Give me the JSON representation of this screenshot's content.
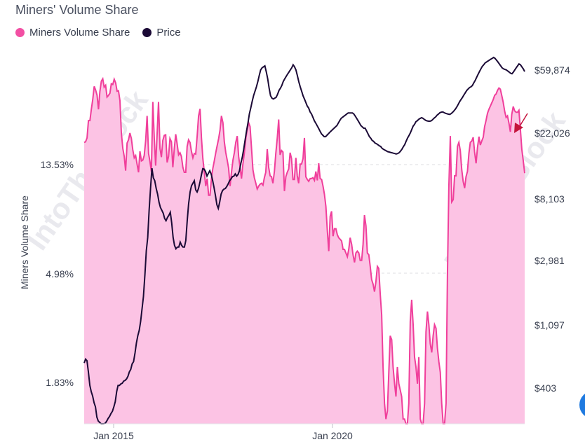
{
  "chart_data": {
    "type": "area",
    "title": "Miners' Volume Share",
    "ylabel": "Miners Volume Share",
    "y_left_ticks": [
      "13.53%",
      "4.98%",
      "1.83%"
    ],
    "y_right_ticks": [
      "$59,874",
      "$22,026",
      "$8,103",
      "$2,981",
      "$1,097",
      "$403"
    ],
    "x_ticks": [
      "Jan 2015",
      "Jan 2020"
    ],
    "x_start": "2014-06",
    "x_step_months": 1,
    "legend_position": "top-left",
    "grid": true,
    "log_scale_left": true,
    "log_scale_right": true,
    "series": [
      {
        "name": "Miners Volume Share",
        "color": "#f03f9b",
        "fill": "#fcc3e4",
        "axis": "left",
        "unit": "%",
        "values": [
          16.6,
          16.7,
          17.3,
          20.3,
          20.3,
          22.5,
          24.6,
          27.8,
          26.9,
          25.6,
          22.5,
          26.5,
          29.2,
          29.8,
          27.6,
          28.1,
          25.2,
          25.6,
          26.1,
          28.5,
          28.3,
          29.7,
          28.7,
          26.6,
          26.7,
          24.4,
          18.1,
          15.7,
          14.6,
          12.8,
          16.5,
          17.0,
          18.1,
          17.2,
          15.5,
          14.4,
          14.7,
          13.6,
          12.6,
          15.3,
          14.0,
          14.1,
          14.7,
          16.9,
          21.2,
          15.0,
          13.9,
          12.7,
          24.1,
          17.3,
          13.4,
          18.0,
          24.1,
          15.7,
          14.5,
          16.9,
          17.7,
          17.8,
          13.8,
          14.6,
          17.2,
          16.7,
          13.2,
          15.7,
          17.9,
          16.4,
          14.8,
          15.1,
          14.6,
          13.2,
          12.6,
          12.6,
          16.0,
          17.0,
          16.6,
          15.3,
          14.4,
          15.0,
          14.9,
          17.6,
          21.2,
          22.6,
          17.3,
          14.3,
          12.6,
          11.1,
          11.9,
          10.2,
          10.2,
          12.0,
          13.1,
          14.0,
          15.1,
          16.1,
          17.2,
          18.6,
          21.2,
          19.9,
          16.7,
          15.1,
          14.1,
          13.1,
          11.1,
          12.6,
          14.1,
          15.1,
          16.6,
          17.6,
          14.6,
          13.2,
          11.9,
          13.6,
          15.1,
          17.2,
          18.6,
          19.9,
          19.2,
          15.7,
          12.9,
          12.0,
          11.4,
          10.8,
          11.1,
          11.3,
          11.4,
          11.2,
          12.0,
          12.6,
          15.6,
          13.2,
          12.2,
          12.1,
          11.4,
          12.7,
          15.0,
          17.3,
          20.5,
          14.8,
          15.4,
          15.2,
          10.6,
          12.1,
          12.6,
          13.0,
          15.1,
          14.3,
          11.8,
          11.8,
          14.4,
          12.2,
          11.4,
          13.6,
          13.6,
          14.3,
          17.3,
          12.1,
          11.8,
          11.6,
          11.9,
          11.9,
          12.0,
          11.7,
          12.7,
          11.7,
          13.7,
          11.9,
          11.8,
          11.1,
          10.3,
          9.2,
          7.4,
          6.1,
          8.4,
          8.8,
          7.0,
          7.5,
          7.5,
          7.1,
          6.9,
          6.8,
          6.7,
          6.2,
          6.2,
          6.0,
          5.8,
          6.2,
          6.9,
          6.5,
          5.9,
          5.5,
          6.0,
          6.1,
          6.0,
          5.6,
          5.6,
          6.5,
          8.5,
          7.7,
          6.0,
          5.9,
          5.3,
          4.7,
          4.5,
          4.2,
          4.6,
          5.3,
          5.2,
          4.1,
          3.4,
          2.1,
          1.5,
          1.3,
          1.4,
          2.0,
          2.8,
          2.7,
          2.1,
          1.8,
          1.6,
          2.1,
          1.8,
          1.7,
          1.6,
          1.3,
          1.3,
          1.2,
          1.0,
          1.5,
          3.2,
          3.9,
          3.1,
          2.3,
          2.1,
          1.8,
          2.3,
          1.3,
          1.0,
          0.9,
          1.5,
          2.9,
          3.5,
          3.1,
          2.6,
          2.4,
          2.8,
          3.1,
          3.0,
          2.5,
          2.2,
          2.0,
          1.5,
          1.2,
          1.1,
          1.5,
          4.9,
          11.0,
          17.6,
          9.6,
          9.8,
          12.2,
          12.2,
          16.0,
          16.6,
          15.4,
          12.9,
          11.6,
          10.9,
          12.1,
          12.7,
          15.0,
          16.6,
          16.8,
          17.4,
          15.2,
          13.7,
          15.8,
          17.5,
          16.2,
          16.8,
          17.4,
          19.2,
          20.3,
          21.7,
          22.5,
          23.2,
          23.9,
          24.6,
          25.6,
          25.9,
          26.8,
          27.4,
          27.1,
          25.5,
          24.0,
          22.1,
          20.9,
          21.2,
          19.8,
          18.3,
          21.5,
          23.1,
          22.2,
          21.9,
          21.9,
          22.3,
          18.7,
          15.6,
          14.0,
          12.5
        ]
      },
      {
        "name": "Price",
        "color": "#1b0a36",
        "axis": "right",
        "unit": "USD",
        "values": [
          598,
          635,
          620,
          520,
          420,
          380,
          355,
          320,
          300,
          255,
          240,
          235,
          228,
          225,
          230,
          232,
          240,
          250,
          258,
          270,
          280,
          300,
          325,
          380,
          420,
          420,
          430,
          435,
          450,
          455,
          465,
          485,
          520,
          540,
          590,
          610,
          700,
          820,
          920,
          1000,
          1150,
          1400,
          1700,
          2400,
          3500,
          4300,
          6600,
          9300,
          12800,
          11000,
          10500,
          9300,
          8500,
          7500,
          6900,
          6600,
          6300,
          5800,
          5600,
          5900,
          6100,
          6400,
          5400,
          4300,
          3800,
          3600,
          3700,
          3700,
          4000,
          3800,
          3700,
          3700,
          4100,
          5600,
          7300,
          8800,
          9700,
          10100,
          10500,
          9100,
          8800,
          9300,
          10300,
          11500,
          12700,
          12600,
          12100,
          11300,
          11800,
          12300,
          11600,
          10500,
          9400,
          8300,
          7200,
          6800,
          7500,
          8500,
          9000,
          9200,
          9300,
          9600,
          10000,
          10500,
          10800,
          11200,
          11300,
          11700,
          11300,
          11600,
          12300,
          13800,
          15200,
          17200,
          20000,
          23000,
          26000,
          30000,
          33000,
          36500,
          40000,
          43000,
          46000,
          50000,
          55000,
          60000,
          62000,
          63000,
          64000,
          58000,
          52000,
          45000,
          40000,
          38500,
          38000,
          38500,
          39000,
          41000,
          43500,
          45000,
          47000,
          50000,
          52000,
          54000,
          56000,
          58000,
          60000,
          62000,
          65000,
          63000,
          60000,
          55000,
          50000,
          46000,
          43000,
          40000,
          38000,
          36000,
          34000,
          33000,
          31000,
          30000,
          28500,
          27000,
          26000,
          25000,
          24000,
          23000,
          22000,
          21500,
          21000,
          21000,
          21500,
          22000,
          22500,
          23000,
          23500,
          24000,
          24500,
          25000,
          26000,
          27000,
          28000,
          28500,
          29000,
          29500,
          30000,
          30500,
          30500,
          30500,
          30500,
          30000,
          29000,
          28000,
          27000,
          26000,
          25000,
          24500,
          24000,
          24000,
          23000,
          22000,
          21000,
          20500,
          19800,
          19500,
          19000,
          18800,
          18500,
          18200,
          18000,
          17500,
          17200,
          17000,
          16800,
          16600,
          16500,
          16400,
          16300,
          16200,
          16100,
          16000,
          16100,
          16300,
          16700,
          17200,
          17900,
          18500,
          19500,
          20500,
          21300,
          22300,
          23500,
          24800,
          25500,
          26600,
          27000,
          27600,
          28000,
          28300,
          28000,
          27500,
          27100,
          26900,
          26800,
          26800,
          27000,
          27600,
          28200,
          28700,
          29500,
          30000,
          30600,
          30900,
          31000,
          30600,
          30300,
          30100,
          29900,
          29800,
          30200,
          30800,
          31600,
          32500,
          33600,
          35000,
          36500,
          37800,
          39000,
          40500,
          42000,
          43500,
          44500,
          45500,
          46000,
          47000,
          49000,
          51000,
          53500,
          56000,
          58500,
          61000,
          63500,
          65000,
          67000,
          68000,
          69000,
          70000,
          71000,
          72000,
          73000,
          72000,
          70000,
          68000,
          66000,
          64000,
          62000,
          61000,
          60500,
          60000,
          59000,
          58000,
          57000,
          56500,
          58000,
          60000,
          62000,
          64000,
          66000,
          65000,
          63000,
          61000,
          58500
        ]
      }
    ],
    "annotation": {
      "text": "",
      "color": "#c4143c",
      "type": "arrow"
    }
  },
  "watermark": {
    "text": "IntoTheBlock",
    "color": "#e9e9ee"
  }
}
